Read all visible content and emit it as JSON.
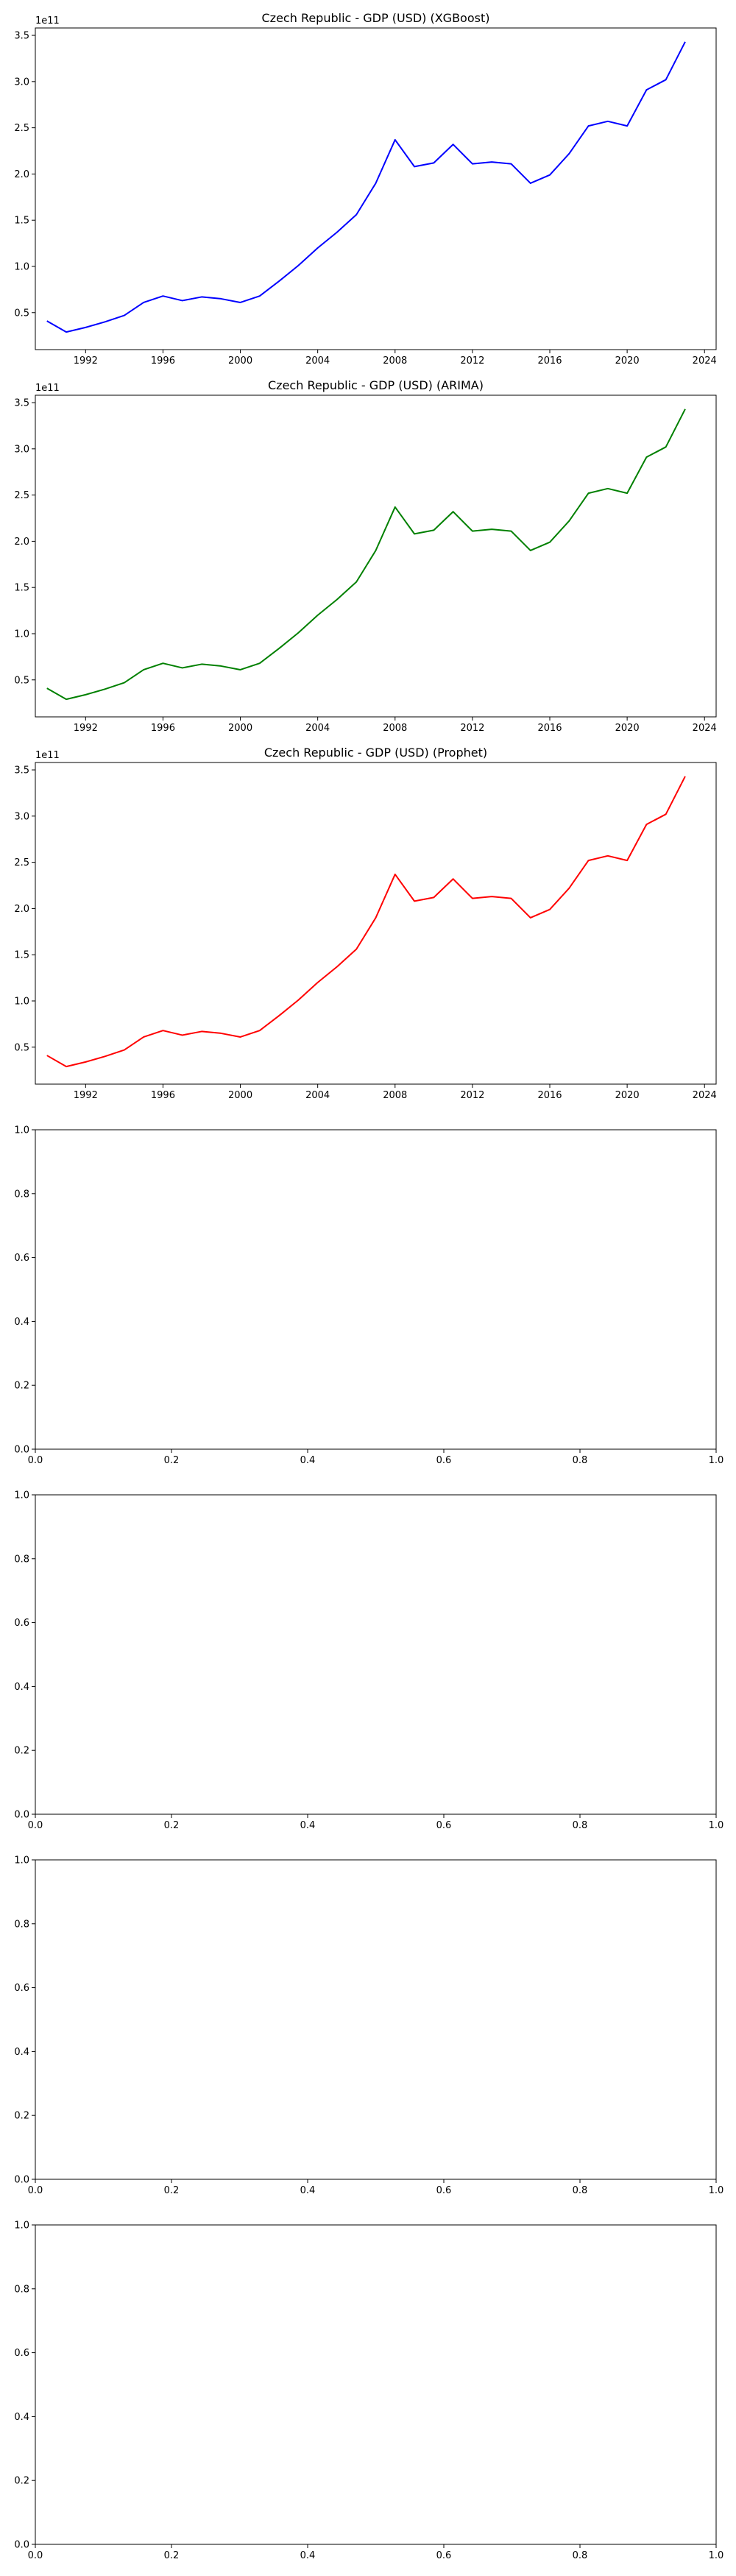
{
  "chart_data": [
    {
      "type": "line",
      "title": "Czech Republic - GDP (USD) (XGBoost)",
      "xlabel": "",
      "ylabel": "",
      "offset_label": "1e11",
      "color": "#0000ff",
      "x": [
        1990,
        1991,
        1992,
        1993,
        1994,
        1995,
        1996,
        1997,
        1998,
        1999,
        2000,
        2001,
        2002,
        2003,
        2004,
        2005,
        2006,
        2007,
        2008,
        2009,
        2010,
        2011,
        2012,
        2013,
        2014,
        2015,
        2016,
        2017,
        2018,
        2019,
        2020,
        2021,
        2022,
        2023
      ],
      "y": [
        0.41,
        0.29,
        0.34,
        0.4,
        0.47,
        0.61,
        0.68,
        0.63,
        0.67,
        0.65,
        0.61,
        0.68,
        0.84,
        1.01,
        1.2,
        1.37,
        1.56,
        1.9,
        2.37,
        2.08,
        2.12,
        2.32,
        2.11,
        2.13,
        2.11,
        1.9,
        1.99,
        2.22,
        2.52,
        2.57,
        2.52,
        2.91,
        3.02,
        3.43
      ],
      "xlim": [
        1989.4,
        2024.6
      ],
      "ylim": [
        0.1,
        3.58
      ],
      "xticks": [
        1992,
        1996,
        2000,
        2004,
        2008,
        2012,
        2016,
        2020,
        2024
      ],
      "yticks": [
        0.5,
        1.0,
        1.5,
        2.0,
        2.5,
        3.0,
        3.5
      ],
      "xtick_labels": [
        "1992",
        "1996",
        "2000",
        "2004",
        "2008",
        "2012",
        "2016",
        "2020",
        "2024"
      ],
      "ytick_labels": [
        "0.5",
        "1.0",
        "1.5",
        "2.0",
        "2.5",
        "3.0",
        "3.5"
      ]
    },
    {
      "type": "line",
      "title": "Czech Republic - GDP (USD) (ARIMA)",
      "xlabel": "",
      "ylabel": "",
      "offset_label": "1e11",
      "color": "#008000",
      "x": [
        1990,
        1991,
        1992,
        1993,
        1994,
        1995,
        1996,
        1997,
        1998,
        1999,
        2000,
        2001,
        2002,
        2003,
        2004,
        2005,
        2006,
        2007,
        2008,
        2009,
        2010,
        2011,
        2012,
        2013,
        2014,
        2015,
        2016,
        2017,
        2018,
        2019,
        2020,
        2021,
        2022,
        2023
      ],
      "y": [
        0.41,
        0.29,
        0.34,
        0.4,
        0.47,
        0.61,
        0.68,
        0.63,
        0.67,
        0.65,
        0.61,
        0.68,
        0.84,
        1.01,
        1.2,
        1.37,
        1.56,
        1.9,
        2.37,
        2.08,
        2.12,
        2.32,
        2.11,
        2.13,
        2.11,
        1.9,
        1.99,
        2.22,
        2.52,
        2.57,
        2.52,
        2.91,
        3.02,
        3.43
      ],
      "xlim": [
        1989.4,
        2024.6
      ],
      "ylim": [
        0.1,
        3.58
      ],
      "xticks": [
        1992,
        1996,
        2000,
        2004,
        2008,
        2012,
        2016,
        2020,
        2024
      ],
      "yticks": [
        0.5,
        1.0,
        1.5,
        2.0,
        2.5,
        3.0,
        3.5
      ],
      "xtick_labels": [
        "1992",
        "1996",
        "2000",
        "2004",
        "2008",
        "2012",
        "2016",
        "2020",
        "2024"
      ],
      "ytick_labels": [
        "0.5",
        "1.0",
        "1.5",
        "2.0",
        "2.5",
        "3.0",
        "3.5"
      ]
    },
    {
      "type": "line",
      "title": "Czech Republic - GDP (USD) (Prophet)",
      "xlabel": "",
      "ylabel": "",
      "offset_label": "1e11",
      "color": "#ff0000",
      "x": [
        1990,
        1991,
        1992,
        1993,
        1994,
        1995,
        1996,
        1997,
        1998,
        1999,
        2000,
        2001,
        2002,
        2003,
        2004,
        2005,
        2006,
        2007,
        2008,
        2009,
        2010,
        2011,
        2012,
        2013,
        2014,
        2015,
        2016,
        2017,
        2018,
        2019,
        2020,
        2021,
        2022,
        2023
      ],
      "y": [
        0.41,
        0.29,
        0.34,
        0.4,
        0.47,
        0.61,
        0.68,
        0.63,
        0.67,
        0.65,
        0.61,
        0.68,
        0.84,
        1.01,
        1.2,
        1.37,
        1.56,
        1.9,
        2.37,
        2.08,
        2.12,
        2.32,
        2.11,
        2.13,
        2.11,
        1.9,
        1.99,
        2.22,
        2.52,
        2.57,
        2.52,
        2.91,
        3.02,
        3.43
      ],
      "xlim": [
        1989.4,
        2024.6
      ],
      "ylim": [
        0.1,
        3.58
      ],
      "xticks": [
        1992,
        1996,
        2000,
        2004,
        2008,
        2012,
        2016,
        2020,
        2024
      ],
      "yticks": [
        0.5,
        1.0,
        1.5,
        2.0,
        2.5,
        3.0,
        3.5
      ],
      "xtick_labels": [
        "1992",
        "1996",
        "2000",
        "2004",
        "2008",
        "2012",
        "2016",
        "2020",
        "2024"
      ],
      "ytick_labels": [
        "0.5",
        "1.0",
        "1.5",
        "2.0",
        "2.5",
        "3.0",
        "3.5"
      ]
    },
    {
      "type": "line",
      "title": "",
      "xlabel": "",
      "ylabel": "",
      "x": [],
      "y": [],
      "xlim": [
        0,
        1
      ],
      "ylim": [
        0,
        1
      ],
      "xticks": [
        0,
        0.2,
        0.4,
        0.6,
        0.8,
        1.0
      ],
      "yticks": [
        0,
        0.2,
        0.4,
        0.6,
        0.8,
        1.0
      ],
      "xtick_labels": [
        "0.0",
        "0.2",
        "0.4",
        "0.6",
        "0.8",
        "1.0"
      ],
      "ytick_labels": [
        "0.0",
        "0.2",
        "0.4",
        "0.6",
        "0.8",
        "1.0"
      ]
    },
    {
      "type": "line",
      "title": "",
      "xlabel": "",
      "ylabel": "",
      "x": [],
      "y": [],
      "xlim": [
        0,
        1
      ],
      "ylim": [
        0,
        1
      ],
      "xticks": [
        0,
        0.2,
        0.4,
        0.6,
        0.8,
        1.0
      ],
      "yticks": [
        0,
        0.2,
        0.4,
        0.6,
        0.8,
        1.0
      ],
      "xtick_labels": [
        "0.0",
        "0.2",
        "0.4",
        "0.6",
        "0.8",
        "1.0"
      ],
      "ytick_labels": [
        "0.0",
        "0.2",
        "0.4",
        "0.6",
        "0.8",
        "1.0"
      ]
    },
    {
      "type": "line",
      "title": "",
      "xlabel": "",
      "ylabel": "",
      "x": [],
      "y": [],
      "xlim": [
        0,
        1
      ],
      "ylim": [
        0,
        1
      ],
      "xticks": [
        0,
        0.2,
        0.4,
        0.6,
        0.8,
        1.0
      ],
      "yticks": [
        0,
        0.2,
        0.4,
        0.6,
        0.8,
        1.0
      ],
      "xtick_labels": [
        "0.0",
        "0.2",
        "0.4",
        "0.6",
        "0.8",
        "1.0"
      ],
      "ytick_labels": [
        "0.0",
        "0.2",
        "0.4",
        "0.6",
        "0.8",
        "1.0"
      ]
    },
    {
      "type": "line",
      "title": "",
      "xlabel": "",
      "ylabel": "",
      "x": [],
      "y": [],
      "xlim": [
        0,
        1
      ],
      "ylim": [
        0,
        1
      ],
      "xticks": [
        0,
        0.2,
        0.4,
        0.6,
        0.8,
        1.0
      ],
      "yticks": [
        0,
        0.2,
        0.4,
        0.6,
        0.8,
        1.0
      ],
      "xtick_labels": [
        "0.0",
        "0.2",
        "0.4",
        "0.6",
        "0.8",
        "1.0"
      ],
      "ytick_labels": [
        "0.0",
        "0.2",
        "0.4",
        "0.6",
        "0.8",
        "1.0"
      ]
    }
  ]
}
